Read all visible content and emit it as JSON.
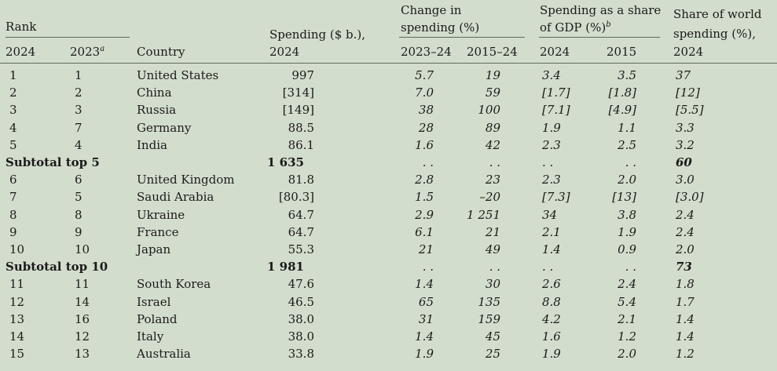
{
  "header": {
    "rank_group": "Rank",
    "col_2024": "2024",
    "col_2023": "2023",
    "col_2023_note": "a",
    "country": "Country",
    "spending_line1": "Spending ($ b.),",
    "spending_line2": "2024",
    "change_line1": "Change in",
    "change_line2": "spending (%)",
    "change_sub1": "2023–24",
    "change_sub2": "2015–24",
    "share_gdp_line1": "Spending as a share",
    "share_gdp_line2": "of GDP (%)",
    "share_gdp_note": "b",
    "share_gdp_sub1": "2024",
    "share_gdp_sub2": "2015",
    "world_line1": "Share of world",
    "world_line2": "spending (%),",
    "world_line3": "2024"
  },
  "rows": [
    {
      "type": "row",
      "r24": "1",
      "r23": "1",
      "country": "United States",
      "spend": "997",
      "ch1": "5.7",
      "ch2": "19",
      "g24": "3.4",
      "g15": "3.5",
      "world": "37"
    },
    {
      "type": "row",
      "r24": "2",
      "r23": "2",
      "country": "China",
      "spend": "[314]",
      "ch1": "7.0",
      "ch2": "59",
      "g24": "[1.7]",
      "g15": "[1.8]",
      "world": "[12]"
    },
    {
      "type": "row",
      "r24": "3",
      "r23": "3",
      "country": "Russia",
      "spend": "[149]",
      "ch1": "38",
      "ch2": "100",
      "g24": "[7.1]",
      "g15": "[4.9]",
      "world": "[5.5]"
    },
    {
      "type": "row",
      "r24": "4",
      "r23": "7",
      "country": "Germany",
      "spend": "88.5",
      "ch1": "28",
      "ch2": "89",
      "g24": "1.9",
      "g15": "1.1",
      "world": "3.3"
    },
    {
      "type": "row",
      "r24": "5",
      "r23": "4",
      "country": "India",
      "spend": "86.1",
      "ch1": "1.6",
      "ch2": "42",
      "g24": "2.3",
      "g15": "2.5",
      "world": "3.2"
    },
    {
      "type": "subtotal",
      "label": "Subtotal top 5",
      "spend": "1 635",
      "ch1": ". .",
      "ch2": ". .",
      "g24": ". .",
      "g15": ". .",
      "world": "60"
    },
    {
      "type": "row",
      "r24": "6",
      "r23": "6",
      "country": "United Kingdom",
      "spend": "81.8",
      "ch1": "2.8",
      "ch2": "23",
      "g24": "2.3",
      "g15": "2.0",
      "world": "3.0"
    },
    {
      "type": "row",
      "r24": "7",
      "r23": "5",
      "country": "Saudi Arabia",
      "spend": "[80.3]",
      "ch1": "1.5",
      "ch2": "–20",
      "g24": "[7.3]",
      "g15": "[13]",
      "world": "[3.0]"
    },
    {
      "type": "row",
      "r24": "8",
      "r23": "8",
      "country": "Ukraine",
      "spend": "64.7",
      "ch1": "2.9",
      "ch2": "1 251",
      "g24": "34",
      "g15": "3.8",
      "world": "2.4"
    },
    {
      "type": "row",
      "r24": "9",
      "r23": "9",
      "country": "France",
      "spend": "64.7",
      "ch1": "6.1",
      "ch2": "21",
      "g24": "2.1",
      "g15": "1.9",
      "world": "2.4"
    },
    {
      "type": "row",
      "r24": "10",
      "r23": "10",
      "country": "Japan",
      "spend": "55.3",
      "ch1": "21",
      "ch2": "49",
      "g24": "1.4",
      "g15": "0.9",
      "world": "2.0"
    },
    {
      "type": "subtotal",
      "label": "Subtotal top 10",
      "spend": "1 981",
      "ch1": ". .",
      "ch2": ". .",
      "g24": ". .",
      "g15": ". .",
      "world": "73"
    },
    {
      "type": "row",
      "r24": "11",
      "r23": "11",
      "country": "South Korea",
      "spend": "47.6",
      "ch1": "1.4",
      "ch2": "30",
      "g24": "2.6",
      "g15": "2.4",
      "world": "1.8"
    },
    {
      "type": "row",
      "r24": "12",
      "r23": "14",
      "country": "Israel",
      "spend": "46.5",
      "ch1": "65",
      "ch2": "135",
      "g24": "8.8",
      "g15": "5.4",
      "world": "1.7"
    },
    {
      "type": "row",
      "r24": "13",
      "r23": "16",
      "country": "Poland",
      "spend": "38.0",
      "ch1": "31",
      "ch2": "159",
      "g24": "4.2",
      "g15": "2.1",
      "world": "1.4"
    },
    {
      "type": "row",
      "r24": "14",
      "r23": "12",
      "country": "Italy",
      "spend": "38.0",
      "ch1": "1.4",
      "ch2": "45",
      "g24": "1.6",
      "g15": "1.2",
      "world": "1.4"
    },
    {
      "type": "row",
      "r24": "15",
      "r23": "13",
      "country": "Australia",
      "spend": "33.8",
      "ch1": "1.9",
      "ch2": "25",
      "g24": "1.9",
      "g15": "2.0",
      "world": "1.2"
    }
  ]
}
